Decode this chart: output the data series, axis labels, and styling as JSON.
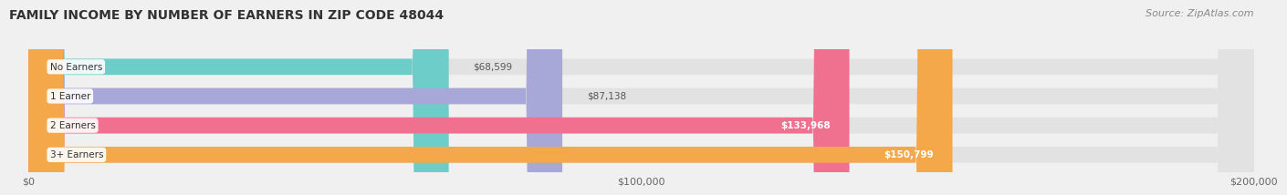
{
  "title": "FAMILY INCOME BY NUMBER OF EARNERS IN ZIP CODE 48044",
  "source": "Source: ZipAtlas.com",
  "categories": [
    "No Earners",
    "1 Earner",
    "2 Earners",
    "3+ Earners"
  ],
  "values": [
    68599,
    87138,
    133968,
    150799
  ],
  "bar_colors": [
    "#6dcdc8",
    "#a8a8d8",
    "#f07090",
    "#f5a84a"
  ],
  "value_labels": [
    "$68,599",
    "$87,138",
    "$133,968",
    "$150,799"
  ],
  "xlim": [
    0,
    200000
  ],
  "xticks": [
    0,
    100000,
    200000
  ],
  "xtick_labels": [
    "$0",
    "$100,000",
    "$200,000"
  ],
  "background_color": "#f0f0f0",
  "bar_bg_color": "#e2e2e2",
  "title_fontsize": 10,
  "source_fontsize": 8,
  "bar_height": 0.55
}
